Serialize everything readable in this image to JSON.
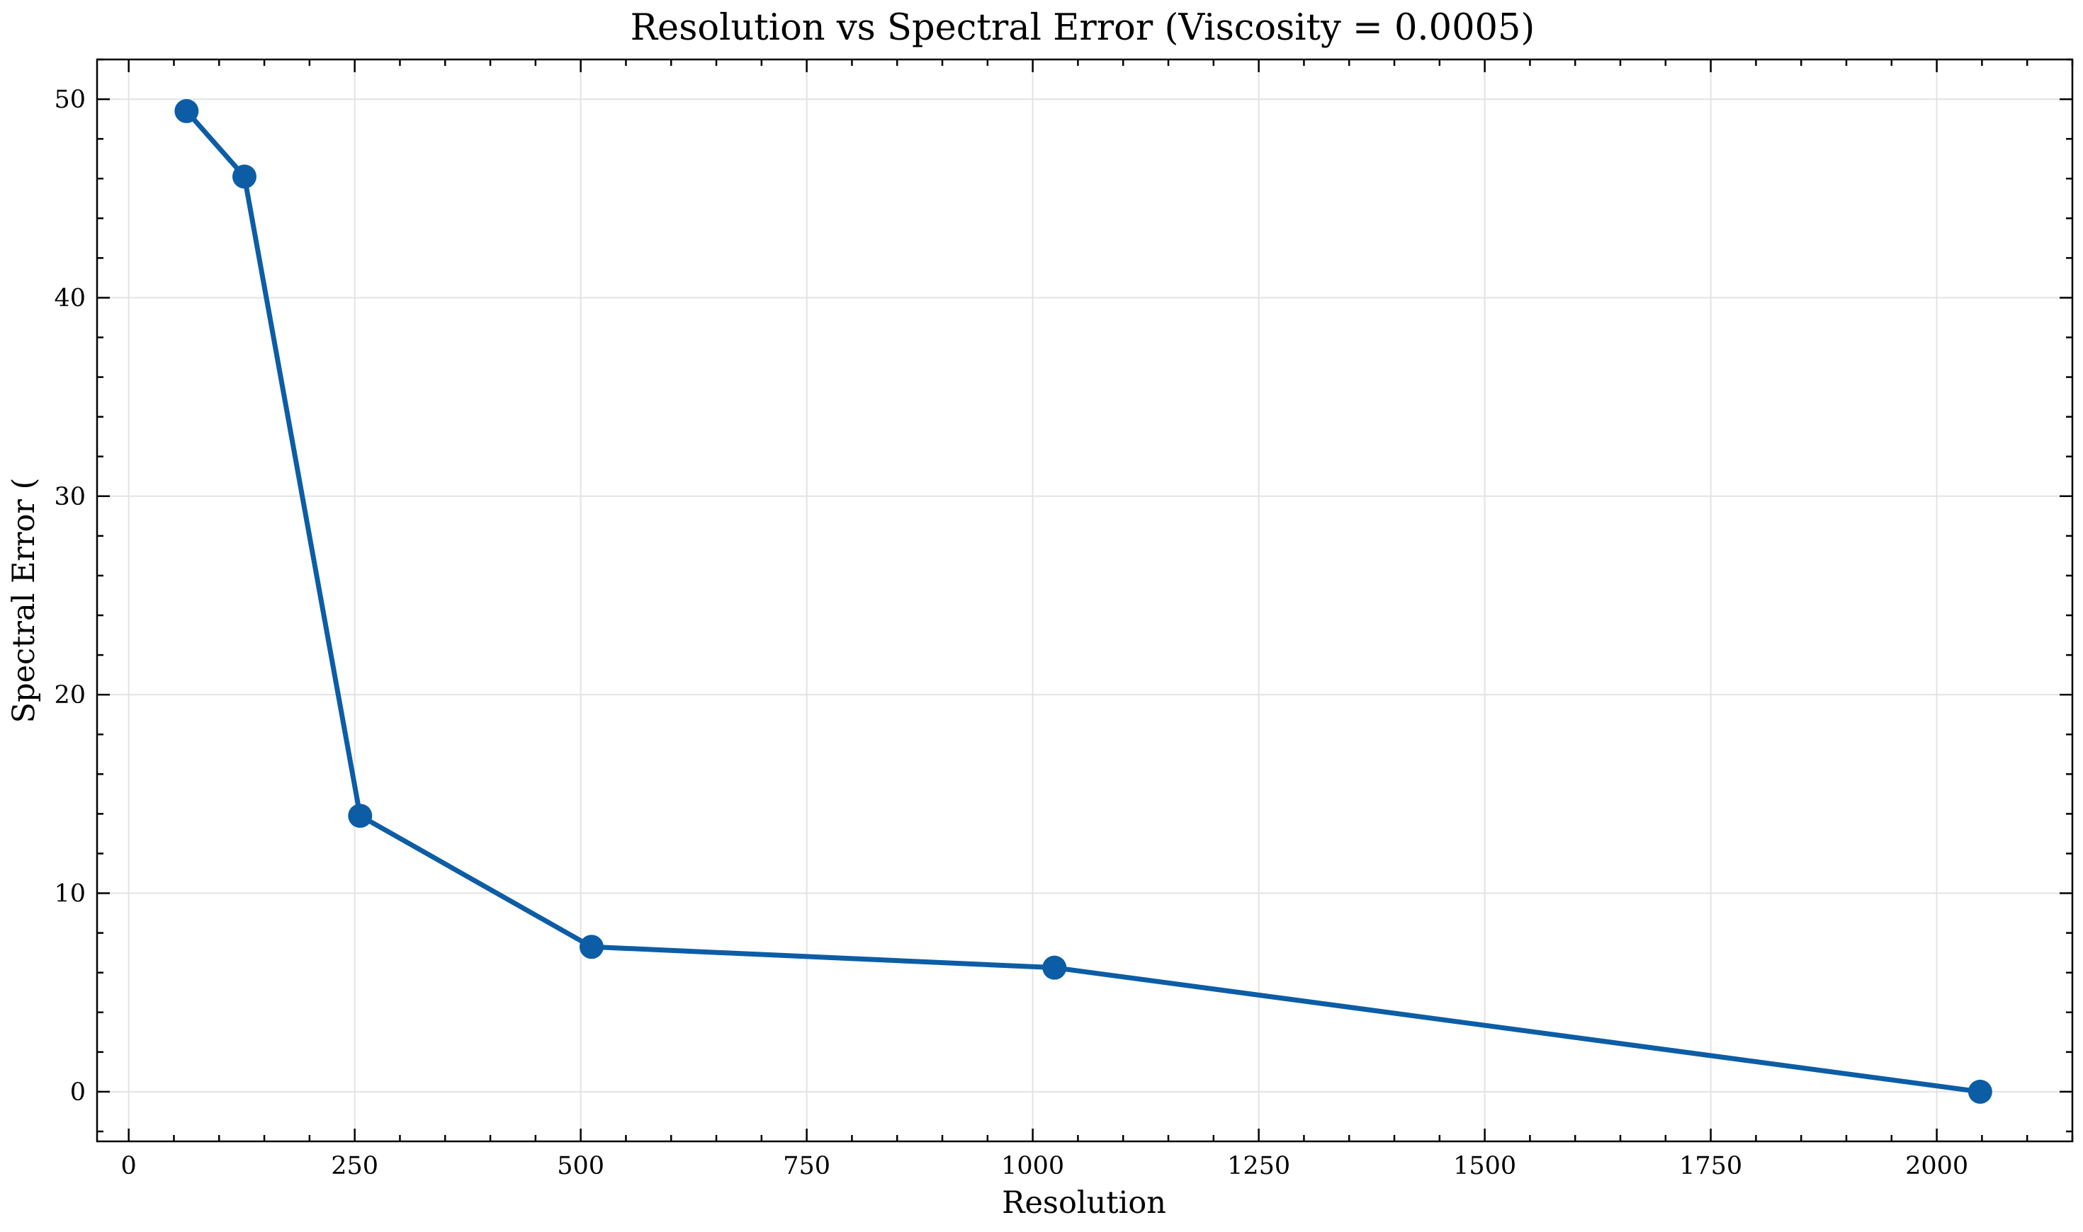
{
  "chart_data": {
    "type": "line",
    "title": "Resolution vs Spectral Error (Viscosity = 0.0005)",
    "xlabel": "Resolution",
    "ylabel": "Spectral Error (",
    "xlim": [
      -35,
      2150
    ],
    "ylim": [
      -2.5,
      52
    ],
    "x_ticks": [
      0,
      250,
      500,
      750,
      1000,
      1250,
      1500,
      1750,
      2000
    ],
    "y_ticks": [
      0,
      10,
      20,
      30,
      40,
      50
    ],
    "grid": true,
    "legend": "none",
    "series": [
      {
        "color": "#0c5da5",
        "marker": "circle",
        "x": [
          64,
          128,
          256,
          512,
          1024,
          2048
        ],
        "y": [
          49.4,
          46.1,
          13.9,
          7.3,
          6.25,
          0.0
        ]
      }
    ]
  }
}
